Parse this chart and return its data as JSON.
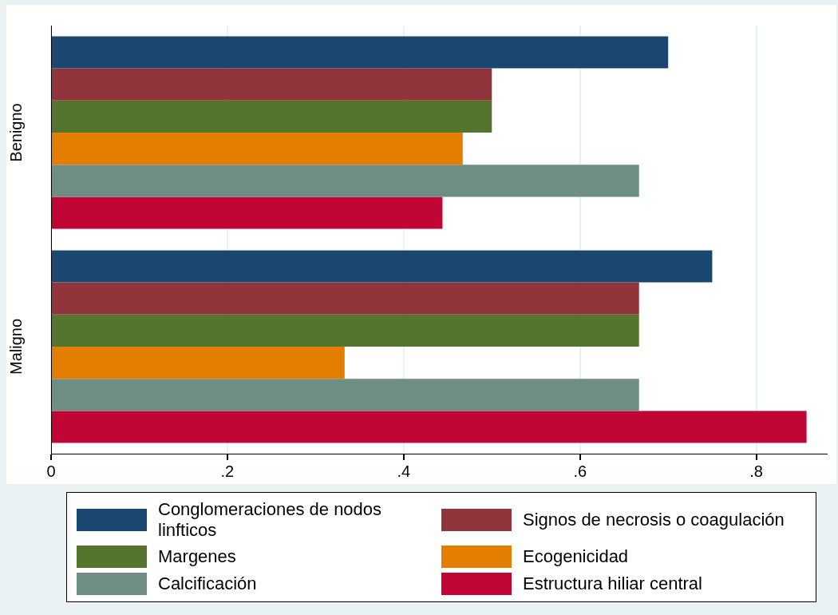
{
  "chart_data": {
    "type": "bar",
    "orientation": "horizontal",
    "categories": [
      "Benigno",
      "Maligno"
    ],
    "series": [
      {
        "name": "Conglomeraciones de nodos linfticos",
        "color": "#1a476f",
        "values": [
          0.7,
          0.75
        ]
      },
      {
        "name": "Signos de necrosis o coagulación",
        "color": "#90353b",
        "values": [
          0.5,
          0.667
        ]
      },
      {
        "name": "Margenes",
        "color": "#55752f",
        "values": [
          0.5,
          0.667
        ]
      },
      {
        "name": "Ecogenicidad",
        "color": "#e37e00",
        "values": [
          0.467,
          0.333
        ]
      },
      {
        "name": "Calcificación",
        "color": "#6e8e84",
        "values": [
          0.667,
          0.667
        ]
      },
      {
        "name": "Estructura hiliar central",
        "color": "#c10534",
        "values": [
          0.444,
          0.857
        ]
      }
    ],
    "xlim": [
      0,
      0.88
    ],
    "xticks": [
      0,
      {
        "value": 0.2,
        "label": ".2"
      },
      {
        "value": 0.4,
        "label": ".4"
      },
      {
        "value": 0.6,
        "label": ".6"
      },
      {
        "value": 0.8,
        "label": ".8"
      }
    ],
    "grid": "x",
    "legend": "bottom"
  }
}
